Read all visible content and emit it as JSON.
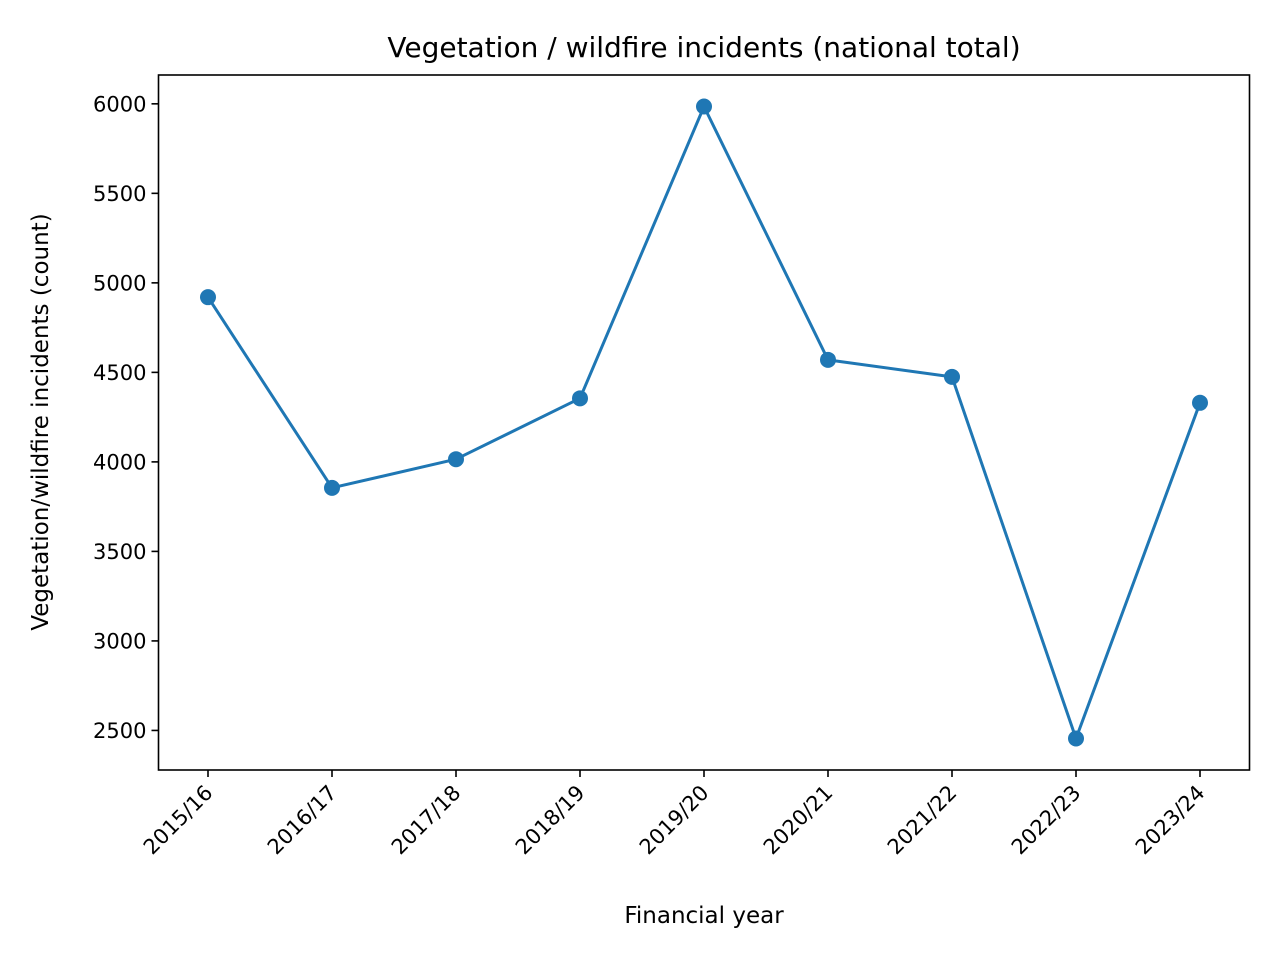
{
  "chart_data": {
    "type": "line",
    "title": "Vegetation / wildfire incidents (national total)",
    "xlabel": "Financial year",
    "ylabel": "Vegetation/wildfire incidents (count)",
    "categories": [
      "2015/16",
      "2016/17",
      "2017/18",
      "2018/19",
      "2019/20",
      "2020/21",
      "2021/22",
      "2022/23",
      "2023/24"
    ],
    "series": [
      {
        "name": "Vegetation/wildfire incidents",
        "values": [
          4920,
          3855,
          4015,
          4355,
          5985,
          4570,
          4475,
          2455,
          4330
        ],
        "color": "#1f77b4"
      }
    ],
    "yticks": [
      2500,
      3000,
      3500,
      4000,
      4500,
      5000,
      5500,
      6000
    ],
    "ylim": [
      2279,
      6161
    ],
    "grid": false,
    "legend": "none"
  }
}
